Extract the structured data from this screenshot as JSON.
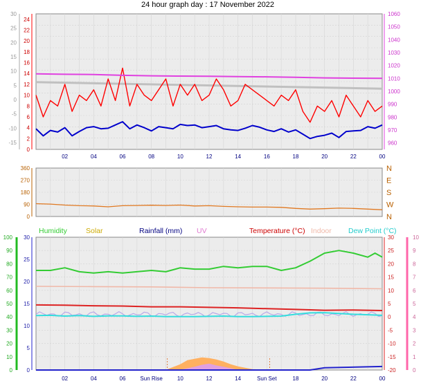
{
  "title": "24 hour graph day : 17 November 2022",
  "colors": {
    "wind": "#ff0000",
    "gust": "#ff0000",
    "wind_avg": "#0000cc",
    "baro": "#e040e0",
    "outline": "#c0c0c0",
    "dir": "#e07820",
    "hum": "#33cc33",
    "solar": "#ffb060",
    "rain": "#2222cc",
    "uv": "#e0a0e0",
    "temp": "#dd2222",
    "indoor": "#f0b8a8",
    "dew": "#33dddd",
    "dir_axis": "#b86000",
    "plot_bg": "#ececec"
  },
  "sunrise_label": "Sun Rise",
  "sunset_label": "Sun Set",
  "x_ticks": [
    "02",
    "04",
    "06",
    "08",
    "10",
    "12",
    "14",
    "16",
    "18",
    "20",
    "22",
    "00"
  ],
  "x_ticks_bottom": [
    "02",
    "04",
    "06",
    "Sun Rise",
    "10",
    "12",
    "14",
    "Sun Set",
    "18",
    "20",
    "22",
    "00"
  ],
  "chart_data": [
    {
      "type": "line",
      "panel": "wind-barometer",
      "left_label": "Windspeed (kts)",
      "right_label": "Barometer (hpa)",
      "left_ticks": [
        "0",
        "2",
        "4",
        "6",
        "8",
        "10",
        "12",
        "14",
        "16",
        "18",
        "20",
        "22",
        "24"
      ],
      "outer_ticks": [
        "-15",
        "-10",
        "-5",
        "0",
        "5",
        "10",
        "15",
        "20",
        "25",
        "30"
      ],
      "right_ticks": [
        "960",
        "970",
        "980",
        "990",
        "1000",
        "1010",
        "1020",
        "1030",
        "1040",
        "1050",
        "1060"
      ],
      "ylim_wind": [
        0,
        25
      ],
      "ylim_baro": [
        955,
        1060
      ],
      "series": [
        {
          "name": "Windspeed (kts)",
          "x": [
            0,
            0.5,
            1,
            1.5,
            2,
            2.5,
            3,
            3.5,
            4,
            4.5,
            5,
            5.5,
            6,
            6.5,
            7,
            7.5,
            8,
            8.5,
            9,
            9.5,
            10,
            10.5,
            11,
            11.5,
            12,
            12.5,
            13,
            13.5,
            14,
            14.5,
            15,
            15.5,
            16,
            16.5,
            17,
            17.5,
            18,
            18.5,
            19,
            19.5,
            20,
            20.5,
            21,
            21.5,
            22,
            22.5,
            23,
            23.5,
            24
          ],
          "values": [
            10,
            6,
            9,
            8,
            12,
            7,
            10,
            9,
            11,
            8,
            13,
            9,
            15,
            8,
            12,
            10,
            9,
            11,
            13,
            8,
            12,
            10,
            12,
            9,
            10,
            13,
            11,
            8,
            9,
            12,
            11,
            10,
            9,
            8,
            10,
            9,
            11,
            7,
            5,
            8,
            7,
            9,
            6,
            10,
            8,
            6,
            9,
            7,
            8
          ]
        },
        {
          "name": "Average wind",
          "x": [
            0,
            0.5,
            1,
            1.5,
            2,
            2.5,
            3,
            3.5,
            4,
            4.5,
            5,
            5.5,
            6,
            6.5,
            7,
            7.5,
            8,
            8.5,
            9,
            9.5,
            10,
            10.5,
            11,
            11.5,
            12,
            12.5,
            13,
            13.5,
            14,
            14.5,
            15,
            15.5,
            16,
            16.5,
            17,
            17.5,
            18,
            18.5,
            19,
            19.5,
            20,
            20.5,
            21,
            21.5,
            22,
            22.5,
            23,
            23.5,
            24
          ],
          "values": [
            3.8,
            2.5,
            3.5,
            3.2,
            4.0,
            2.5,
            3.3,
            4.0,
            4.2,
            3.8,
            3.9,
            4.5,
            5.1,
            3.8,
            4.5,
            4.0,
            3.4,
            4.2,
            4.0,
            3.8,
            4.6,
            4.4,
            4.5,
            4.0,
            4.2,
            4.4,
            3.8,
            3.6,
            3.5,
            3.9,
            4.4,
            4.1,
            3.6,
            3.3,
            3.8,
            3.2,
            3.6,
            2.8,
            2.0,
            2.4,
            2.6,
            3.0,
            2.2,
            3.3,
            3.4,
            3.5,
            4.2,
            3.9,
            4.5
          ]
        },
        {
          "name": "Barometer (hpa)",
          "x": [
            0,
            2,
            4,
            6,
            8,
            10,
            12,
            14,
            16,
            18,
            20,
            22,
            24
          ],
          "values": [
            1013.5,
            1013.2,
            1013.0,
            1012.4,
            1012.0,
            1011.8,
            1011.7,
            1011.4,
            1011.2,
            1010.8,
            1010.4,
            1010.2,
            1010.0
          ]
        }
      ]
    },
    {
      "type": "line",
      "panel": "wind-direction",
      "right_ticks": [
        "N",
        "W",
        "S",
        "E",
        "N"
      ],
      "left_ticks": [
        "0",
        "90",
        "180",
        "270",
        "360"
      ],
      "ylim": [
        0,
        360
      ],
      "series": [
        {
          "name": "Wind direction",
          "x": [
            0,
            1,
            2,
            3,
            4,
            5,
            6,
            7,
            8,
            9,
            10,
            11,
            12,
            13,
            14,
            15,
            16,
            17,
            18,
            19,
            20,
            21,
            22,
            23,
            24
          ],
          "values": [
            95,
            92,
            85,
            80,
            78,
            72,
            80,
            82,
            84,
            82,
            85,
            78,
            80,
            75,
            72,
            70,
            70,
            68,
            60,
            55,
            58,
            62,
            60,
            55,
            50
          ]
        }
      ]
    },
    {
      "type": "line",
      "panel": "temperature-humidity",
      "legend": [
        "Humidity",
        "Solar",
        "Rainfall (mm)",
        "UV",
        "Temperature (°C)",
        "Indoor",
        "Dew Point (°C)"
      ],
      "hum_ticks": [
        "0",
        "10",
        "20",
        "30",
        "40",
        "50",
        "60",
        "70",
        "80",
        "90",
        "100"
      ],
      "rain_ticks": [
        "0",
        "5",
        "10",
        "15",
        "20",
        "25",
        "30"
      ],
      "temp_ticks": [
        "-20",
        "-15",
        "-10",
        "-5",
        "0",
        "5",
        "10",
        "15",
        "20",
        "25",
        "30"
      ],
      "uv_ticks": [
        "0",
        "1",
        "2",
        "3",
        "4",
        "5",
        "6",
        "7",
        "8",
        "9",
        "10"
      ],
      "ylim_temp": [
        -20,
        30
      ],
      "series": [
        {
          "name": "Humidity",
          "x": [
            0,
            1,
            2,
            3,
            4,
            5,
            6,
            7,
            8,
            9,
            10,
            11,
            12,
            13,
            14,
            15,
            16,
            17,
            18,
            19,
            20,
            21,
            22,
            23,
            23.5,
            24
          ],
          "values": [
            75,
            75,
            77,
            74,
            73,
            74,
            73,
            74,
            75,
            74,
            77,
            76,
            76,
            78,
            77,
            78,
            78,
            75,
            77,
            82,
            88,
            90,
            88,
            85,
            88,
            85
          ]
        },
        {
          "name": "Temperature (°C)",
          "x": [
            0,
            2,
            4,
            6,
            8,
            10,
            12,
            14,
            16,
            18,
            20,
            22,
            24
          ],
          "values": [
            4.5,
            4.4,
            4.2,
            4.1,
            3.8,
            3.8,
            3.6,
            3.4,
            3.1,
            2.8,
            2.5,
            2.6,
            2.4
          ]
        },
        {
          "name": "Indoor",
          "x": [
            0,
            4,
            8,
            12,
            16,
            20,
            24
          ],
          "values": [
            11.5,
            11.4,
            11.3,
            11.0,
            10.9,
            10.8,
            10.6
          ]
        },
        {
          "name": "Dew Point (°C)",
          "x": [
            0,
            1,
            2,
            3,
            4,
            5,
            6,
            7,
            8,
            9,
            10,
            11,
            12,
            13,
            14,
            15,
            16,
            17,
            18,
            19,
            20,
            21,
            22,
            23,
            24
          ],
          "values": [
            0.5,
            0.6,
            0.3,
            0.5,
            0.2,
            0.4,
            0.4,
            0.2,
            0.3,
            0.1,
            0.1,
            0.1,
            0.2,
            0.3,
            0.1,
            0.1,
            0.2,
            0.3,
            1.0,
            1.5,
            1.6,
            1.3,
            1.0,
            0.8,
            0.6
          ]
        },
        {
          "name": "Rainfall (mm)",
          "x": [
            0,
            19,
            20,
            24
          ],
          "values": [
            0,
            0,
            0.5,
            0.8
          ]
        },
        {
          "name": "Solar",
          "x": [
            9,
            10,
            10.5,
            11,
            11.5,
            12,
            12.5,
            13,
            13.5,
            14,
            15,
            16
          ],
          "values": [
            0,
            0.8,
            1.4,
            1.6,
            1.8,
            1.7,
            1.5,
            1.2,
            0.8,
            0.5,
            0.1,
            0
          ]
        },
        {
          "name": "UV",
          "x": [
            10,
            11,
            11.5,
            12,
            12.5,
            13,
            14
          ],
          "values": [
            0,
            0.25,
            0.4,
            0.5,
            0.35,
            0.25,
            0
          ]
        }
      ]
    }
  ]
}
